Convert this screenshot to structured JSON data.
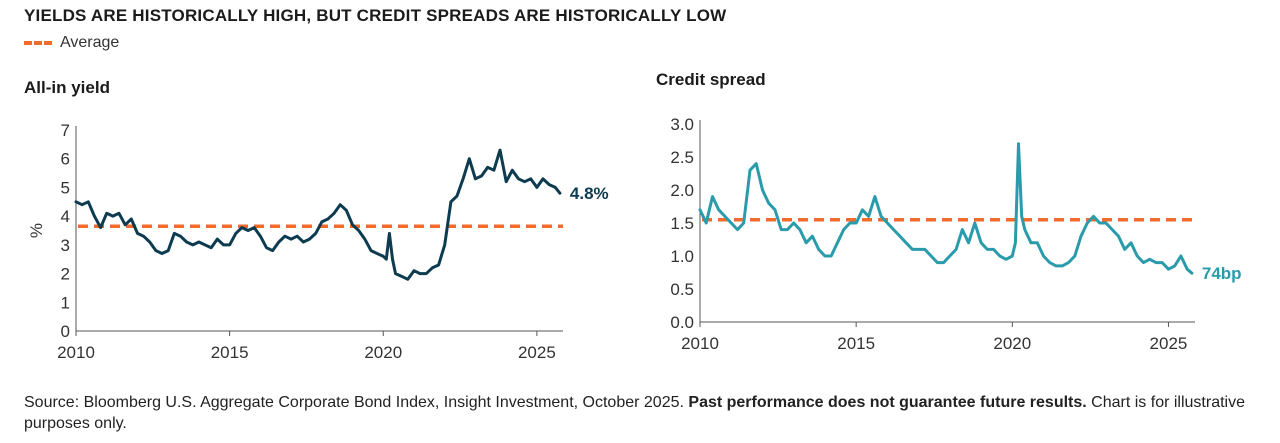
{
  "title": "YIELDS ARE HISTORICALLY HIGH, BUT CREDIT SPREADS ARE HISTORICALLY LOW",
  "legend": {
    "average_label": "Average"
  },
  "colors": {
    "yield_line": "#0d3b4f",
    "spread_line": "#2a9bab",
    "average_line": "#f26b2a"
  },
  "footer": {
    "source": "Source: Bloomberg U.S. Aggregate Corporate Bond Index, Insight Investment, October 2025.",
    "bold": "Past performance does not guarantee future results.",
    "note": "Chart is for illustrative purposes only."
  },
  "chart_data": [
    {
      "type": "line",
      "title": "All-in yield",
      "ylabel": "%",
      "xlim": [
        2010,
        2025.85
      ],
      "ylim": [
        0,
        7
      ],
      "x_ticks": [
        "2010",
        "2015",
        "2020",
        "2025"
      ],
      "y_ticks": [
        "0",
        "1",
        "2",
        "3",
        "4",
        "5",
        "6",
        "7"
      ],
      "average": 3.65,
      "end_label": "4.8%",
      "series": [
        {
          "x": [
            2010.0,
            2010.2,
            2010.4,
            2010.6,
            2010.8,
            2011.0,
            2011.2,
            2011.4,
            2011.6,
            2011.8,
            2012.0,
            2012.2,
            2012.4,
            2012.6,
            2012.8,
            2013.0,
            2013.2,
            2013.4,
            2013.6,
            2013.8,
            2014.0,
            2014.2,
            2014.4,
            2014.6,
            2014.8,
            2015.0,
            2015.2,
            2015.4,
            2015.6,
            2015.8,
            2016.0,
            2016.2,
            2016.4,
            2016.6,
            2016.8,
            2017.0,
            2017.2,
            2017.4,
            2017.6,
            2017.8,
            2018.0,
            2018.2,
            2018.4,
            2018.6,
            2018.8,
            2019.0,
            2019.2,
            2019.4,
            2019.6,
            2019.8,
            2020.0,
            2020.1,
            2020.2,
            2020.3,
            2020.4,
            2020.6,
            2020.8,
            2021.0,
            2021.2,
            2021.4,
            2021.6,
            2021.8,
            2022.0,
            2022.2,
            2022.4,
            2022.6,
            2022.8,
            2023.0,
            2023.2,
            2023.4,
            2023.6,
            2023.8,
            2024.0,
            2024.2,
            2024.4,
            2024.6,
            2024.8,
            2025.0,
            2025.2,
            2025.4,
            2025.6,
            2025.75
          ],
          "y": [
            4.5,
            4.4,
            4.5,
            4.0,
            3.6,
            4.1,
            4.0,
            4.1,
            3.7,
            3.9,
            3.4,
            3.3,
            3.1,
            2.8,
            2.7,
            2.8,
            3.4,
            3.3,
            3.1,
            3.0,
            3.1,
            3.0,
            2.9,
            3.2,
            3.0,
            3.0,
            3.4,
            3.6,
            3.5,
            3.6,
            3.3,
            2.9,
            2.8,
            3.1,
            3.3,
            3.2,
            3.3,
            3.1,
            3.2,
            3.4,
            3.8,
            3.9,
            4.1,
            4.4,
            4.2,
            3.7,
            3.5,
            3.2,
            2.8,
            2.7,
            2.6,
            2.5,
            3.4,
            2.5,
            2.0,
            1.9,
            1.8,
            2.1,
            2.0,
            2.0,
            2.2,
            2.3,
            3.0,
            4.5,
            4.7,
            5.3,
            6.0,
            5.3,
            5.4,
            5.7,
            5.6,
            6.3,
            5.2,
            5.6,
            5.3,
            5.2,
            5.3,
            5.0,
            5.3,
            5.1,
            5.0,
            4.8
          ]
        }
      ]
    },
    {
      "type": "line",
      "title": "Credit spread",
      "ylabel": "",
      "xlim": [
        2010,
        2025.85
      ],
      "ylim": [
        0,
        3.0
      ],
      "x_ticks": [
        "2010",
        "2015",
        "2020",
        "2025"
      ],
      "y_ticks": [
        "0.0",
        "0.5",
        "1.0",
        "1.5",
        "2.0",
        "2.5",
        "3.0"
      ],
      "average": 1.55,
      "end_label": "74bp",
      "series": [
        {
          "x": [
            2010.0,
            2010.2,
            2010.4,
            2010.6,
            2010.8,
            2011.0,
            2011.2,
            2011.4,
            2011.6,
            2011.8,
            2012.0,
            2012.2,
            2012.4,
            2012.6,
            2012.8,
            2013.0,
            2013.2,
            2013.4,
            2013.6,
            2013.8,
            2014.0,
            2014.2,
            2014.4,
            2014.6,
            2014.8,
            2015.0,
            2015.2,
            2015.4,
            2015.6,
            2015.8,
            2016.0,
            2016.2,
            2016.4,
            2016.6,
            2016.8,
            2017.0,
            2017.2,
            2017.4,
            2017.6,
            2017.8,
            2018.0,
            2018.2,
            2018.4,
            2018.6,
            2018.8,
            2019.0,
            2019.2,
            2019.4,
            2019.6,
            2019.8,
            2020.0,
            2020.1,
            2020.2,
            2020.3,
            2020.4,
            2020.6,
            2020.8,
            2021.0,
            2021.2,
            2021.4,
            2021.6,
            2021.8,
            2022.0,
            2022.2,
            2022.4,
            2022.6,
            2022.8,
            2023.0,
            2023.2,
            2023.4,
            2023.6,
            2023.8,
            2024.0,
            2024.2,
            2024.4,
            2024.6,
            2024.8,
            2025.0,
            2025.2,
            2025.4,
            2025.6,
            2025.75
          ],
          "y": [
            1.7,
            1.5,
            1.9,
            1.7,
            1.6,
            1.5,
            1.4,
            1.5,
            2.3,
            2.4,
            2.0,
            1.8,
            1.7,
            1.4,
            1.4,
            1.5,
            1.4,
            1.2,
            1.3,
            1.1,
            1.0,
            1.0,
            1.2,
            1.4,
            1.5,
            1.5,
            1.7,
            1.6,
            1.9,
            1.6,
            1.5,
            1.4,
            1.3,
            1.2,
            1.1,
            1.1,
            1.1,
            1.0,
            0.9,
            0.9,
            1.0,
            1.1,
            1.4,
            1.2,
            1.5,
            1.2,
            1.1,
            1.1,
            1.0,
            0.95,
            1.0,
            1.2,
            2.7,
            1.6,
            1.4,
            1.2,
            1.2,
            1.0,
            0.9,
            0.85,
            0.85,
            0.9,
            1.0,
            1.3,
            1.5,
            1.6,
            1.5,
            1.5,
            1.4,
            1.3,
            1.1,
            1.2,
            1.0,
            0.9,
            0.95,
            0.9,
            0.9,
            0.8,
            0.85,
            1.0,
            0.8,
            0.74
          ]
        }
      ]
    }
  ]
}
